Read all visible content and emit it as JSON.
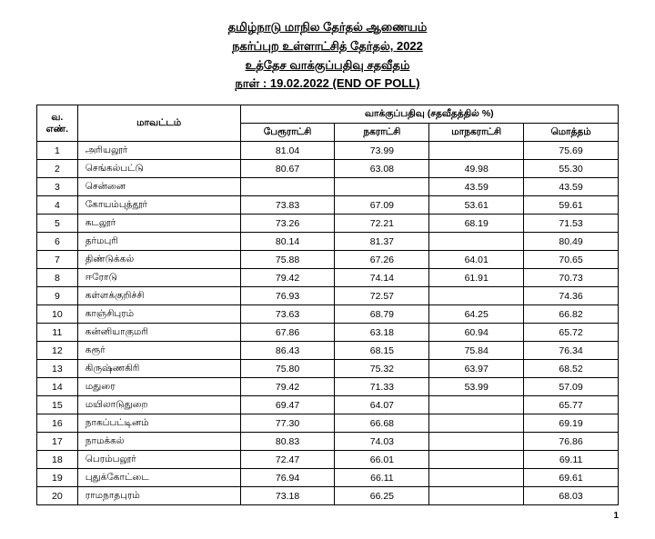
{
  "header": {
    "line1": "தமிழ்நாடு மாநில தேர்தல் ஆணையம்",
    "line2": "நகர்ப்புற உள்ளாட்சித் தேர்தல், 2022",
    "line3": "உத்தேச வாக்குப்பதிவு சதவீதம்",
    "line4": "நாள் : 19.02.2022 (END OF POLL)"
  },
  "table": {
    "headers": {
      "sno": "வ. எண்.",
      "district": "மாவட்டம்",
      "group": "வாக்குப்பதிவு (சதவீதத்தில் %)",
      "col1": "பேரூராட்சி",
      "col2": "நகராட்சி",
      "col3": "மாநகராட்சி",
      "col4": "மொத்தம்"
    },
    "rows": [
      {
        "sno": "1",
        "district": "அரியலூர்",
        "c1": "81.04",
        "c2": "73.99",
        "c3": "",
        "c4": "75.69"
      },
      {
        "sno": "2",
        "district": "செங்கல்பட்டு",
        "c1": "80.67",
        "c2": "63.08",
        "c3": "49.98",
        "c4": "55.30"
      },
      {
        "sno": "3",
        "district": "சென்னை",
        "c1": "",
        "c2": "",
        "c3": "43.59",
        "c4": "43.59"
      },
      {
        "sno": "4",
        "district": "கோயம்புத்தூர்",
        "c1": "73.83",
        "c2": "67.09",
        "c3": "53.61",
        "c4": "59.61"
      },
      {
        "sno": "5",
        "district": "கடலூர்",
        "c1": "73.26",
        "c2": "72.21",
        "c3": "68.19",
        "c4": "71.53"
      },
      {
        "sno": "6",
        "district": "தர்மபுரி",
        "c1": "80.14",
        "c2": "81.37",
        "c3": "",
        "c4": "80.49"
      },
      {
        "sno": "7",
        "district": "திண்டுக்கல்",
        "c1": "75.88",
        "c2": "67.26",
        "c3": "64.01",
        "c4": "70.65"
      },
      {
        "sno": "8",
        "district": "ஈரோடு",
        "c1": "79.42",
        "c2": "74.14",
        "c3": "61.91",
        "c4": "70.73"
      },
      {
        "sno": "9",
        "district": "கள்ளக்குறிச்சி",
        "c1": "76.93",
        "c2": "72.57",
        "c3": "",
        "c4": "74.36"
      },
      {
        "sno": "10",
        "district": "காஞ்சிபுரம்",
        "c1": "73.63",
        "c2": "68.79",
        "c3": "64.25",
        "c4": "66.82"
      },
      {
        "sno": "11",
        "district": "கன்னியாகுமரி",
        "c1": "67.86",
        "c2": "63.18",
        "c3": "60.94",
        "c4": "65.72"
      },
      {
        "sno": "12",
        "district": "கரூர்",
        "c1": "86.43",
        "c2": "68.15",
        "c3": "75.84",
        "c4": "76.34"
      },
      {
        "sno": "13",
        "district": "கிருஷ்ணகிரி",
        "c1": "75.80",
        "c2": "75.32",
        "c3": "63.97",
        "c4": "68.52"
      },
      {
        "sno": "14",
        "district": "மதுரை",
        "c1": "79.42",
        "c2": "71.33",
        "c3": "53.99",
        "c4": "57.09"
      },
      {
        "sno": "15",
        "district": "மயிலாடுதுறை",
        "c1": "69.47",
        "c2": "64.07",
        "c3": "",
        "c4": "65.77"
      },
      {
        "sno": "16",
        "district": "நாகப்பட்டினம்",
        "c1": "77.30",
        "c2": "66.68",
        "c3": "",
        "c4": "69.19"
      },
      {
        "sno": "17",
        "district": "நாமக்கல்",
        "c1": "80.83",
        "c2": "74.03",
        "c3": "",
        "c4": "76.86"
      },
      {
        "sno": "18",
        "district": "பெரம்பலூர்",
        "c1": "72.47",
        "c2": "66.01",
        "c3": "",
        "c4": "69.11"
      },
      {
        "sno": "19",
        "district": "புதுக்கோட்டை",
        "c1": "76.94",
        "c2": "66.11",
        "c3": "",
        "c4": "69.61"
      },
      {
        "sno": "20",
        "district": "ராமநாதபுரம்",
        "c1": "73.18",
        "c2": "66.25",
        "c3": "",
        "c4": "68.03"
      }
    ]
  },
  "pagenum": "1"
}
